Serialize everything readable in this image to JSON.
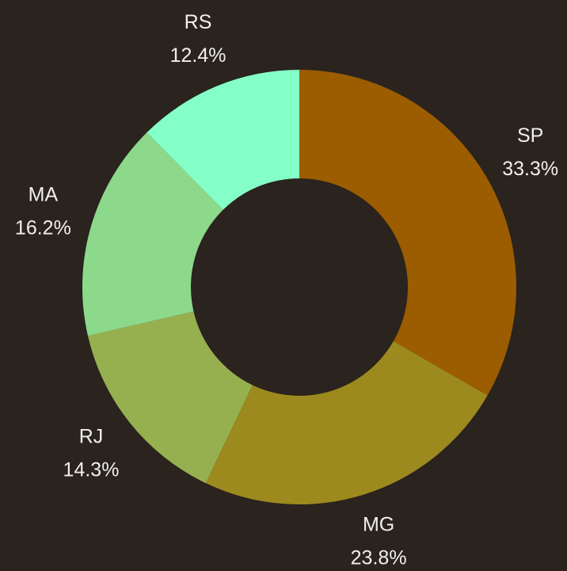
{
  "chart_data": {
    "type": "donut",
    "categories": [
      "SP",
      "MG",
      "RJ",
      "MA",
      "RS"
    ],
    "values": [
      33.3,
      23.8,
      14.3,
      16.2,
      12.4
    ],
    "value_labels": [
      "33.3%",
      "23.8%",
      "14.3%",
      "16.2%",
      "12.4%"
    ],
    "colors": [
      "#9c5c00",
      "#9c8a1e",
      "#97b04f",
      "#8cd98c",
      "#85ffc8"
    ]
  }
}
